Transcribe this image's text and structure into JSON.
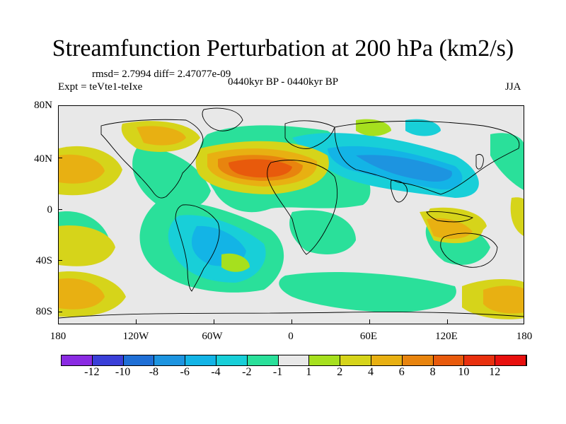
{
  "title": "Streamfunction Perturbation at 200 hPa (km2/s)",
  "stats": "rmsd= 2.7994 diff= 2.47077e-09",
  "period": "0440kyr BP - 0440kyr BP",
  "experiment": "Expt = teVte1-teIxe",
  "season": "JJA",
  "lat_labels": [
    "80N",
    "40N",
    "0",
    "40S",
    "80S"
  ],
  "lon_labels": [
    "180",
    "120W",
    "60W",
    "0",
    "60E",
    "120E",
    "180"
  ],
  "legend": {
    "labels": [
      "-12",
      "-10",
      "-8",
      "-6",
      "-4",
      "-2",
      "-1",
      "1",
      "2",
      "4",
      "6",
      "8",
      "10",
      "12"
    ],
    "colors": [
      "#8a2be2",
      "#3a3fd8",
      "#1f6fd6",
      "#1d94e0",
      "#13b4e6",
      "#18cfd8",
      "#2ae09a",
      "#e8e8e8",
      "#a6e01e",
      "#d6d41a",
      "#e8b012",
      "#e8840e",
      "#e85a0c",
      "#e8300e",
      "#e8100e"
    ]
  },
  "fields": [
    {
      "name": "na-atlantic-high",
      "color": "#e8b012"
    },
    {
      "name": "na-atlantic-core",
      "color": "#e8840e"
    },
    {
      "name": "na-atlantic-peak",
      "color": "#e85a0c"
    }
  ]
}
